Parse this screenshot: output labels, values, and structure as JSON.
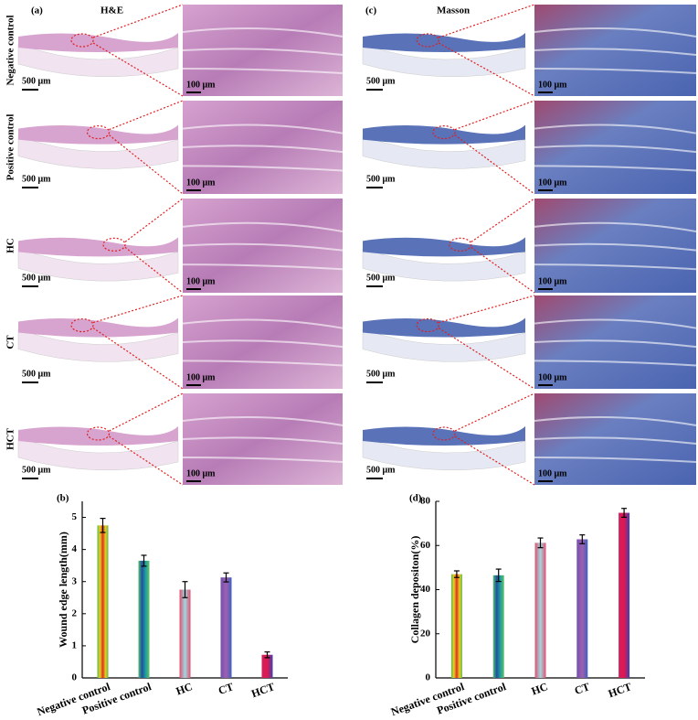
{
  "panels": {
    "a": {
      "label": "(a)",
      "title": "H&E"
    },
    "c": {
      "label": "(c)",
      "title": "Masson"
    }
  },
  "rows": [
    "Negative control",
    "Positive control",
    "HC",
    "CT",
    "HCT"
  ],
  "scale_bars": {
    "overview": "500 μm",
    "zoom": "100 μm"
  },
  "chart_data": [
    {
      "type": "bar",
      "label": "(b)",
      "y_label": "Wound edge length(mm)",
      "categories": [
        "Negative control",
        "Positive  control",
        "HC",
        "CT",
        "HCT"
      ],
      "values": [
        4.75,
        3.65,
        2.75,
        3.13,
        0.72
      ],
      "errors": [
        0.22,
        0.17,
        0.25,
        0.14,
        0.09
      ],
      "ylim": [
        0,
        5.5
      ],
      "yticks": [
        0,
        1,
        2,
        3,
        4,
        5
      ],
      "gradients": [
        [
          "#5cb84a",
          "#e8d020",
          "#e03020",
          "#e8d020",
          "#5cb84a"
        ],
        [
          "#50c070",
          "#2050a0",
          "#20a0a0",
          "#60c060"
        ],
        [
          "#e05070",
          "#a0d8e0",
          "#e05070"
        ],
        [
          "#7050b0",
          "#a060b0",
          "#4060c0"
        ],
        [
          "#d02060",
          "#e01850",
          "#4040b0"
        ]
      ]
    },
    {
      "type": "bar",
      "label": "(d)",
      "y_label": "Collagen depositon(%)",
      "categories": [
        "Negative control",
        "Positive  control",
        "HC",
        "CT",
        "HCT"
      ],
      "values": [
        47,
        46.5,
        61.2,
        62.8,
        74.8
      ],
      "errors": [
        1.5,
        2.8,
        2.2,
        2.0,
        2.0
      ],
      "ylim": [
        0,
        80
      ],
      "yticks": [
        0,
        20,
        40,
        60,
        80
      ],
      "gradients": [
        [
          "#5cb84a",
          "#e8d020",
          "#e03020",
          "#e8d020",
          "#5cb84a"
        ],
        [
          "#50c070",
          "#2050a0",
          "#20a0a0",
          "#60c060"
        ],
        [
          "#e05070",
          "#a0d8e0",
          "#e05070"
        ],
        [
          "#7050b0",
          "#a060b0",
          "#4060c0"
        ],
        [
          "#d02060",
          "#e01850",
          "#4040b0"
        ]
      ]
    }
  ]
}
